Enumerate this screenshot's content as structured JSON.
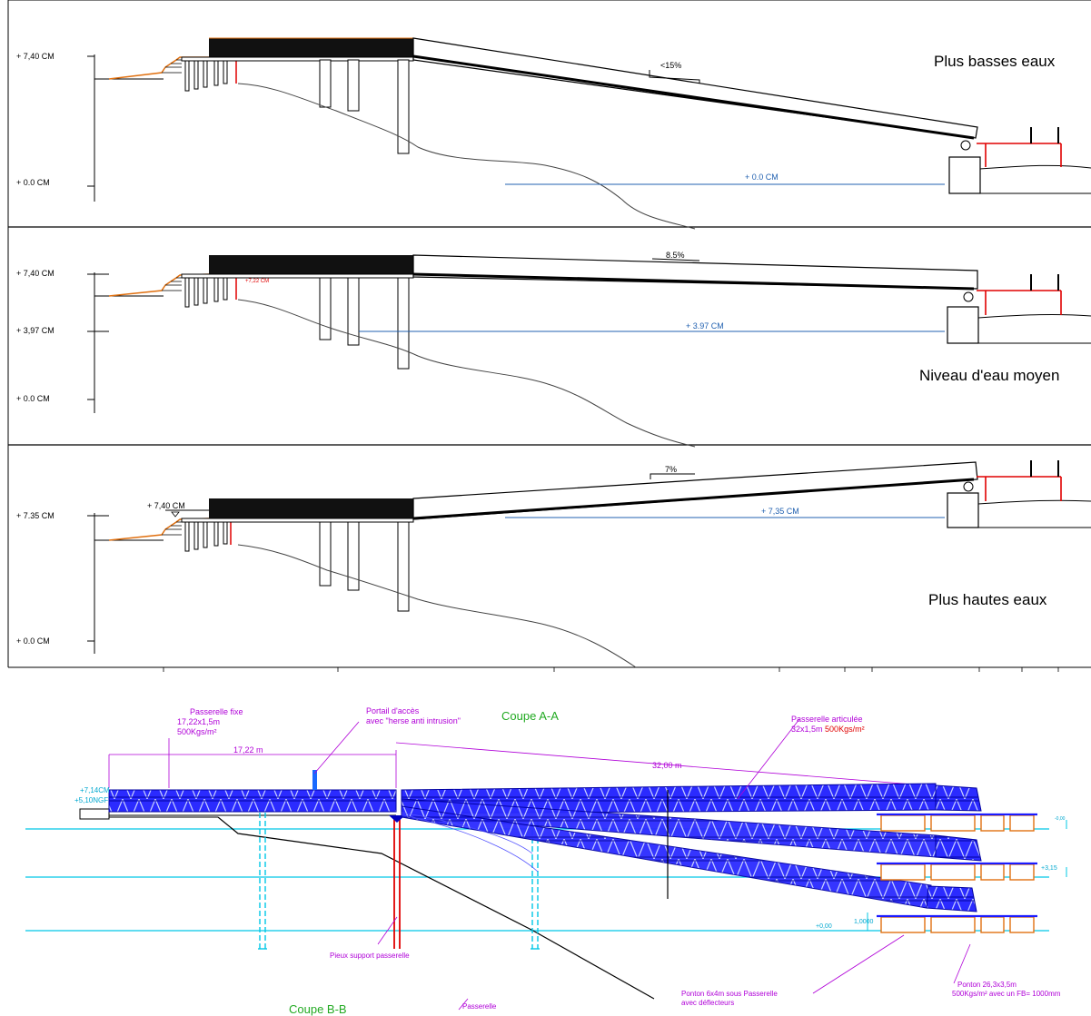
{
  "panels": [
    {
      "title": "Plus basses eaux",
      "slope": "<15%",
      "levels": [
        {
          "label": "+   7,40 CM"
        },
        {
          "label": "+   0.0 CM"
        }
      ],
      "water_label": "+     0.0 CM"
    },
    {
      "title": "Niveau d'eau moyen",
      "slope": "8.5%",
      "levels": [
        {
          "label": "+   7,40 CM"
        },
        {
          "label": "+   3,97 CM"
        },
        {
          "label": "+   0.0 CM"
        }
      ],
      "water_label": "+     3.97 CM",
      "red_note": "+7,22 CM"
    },
    {
      "title": "Plus hautes eaux",
      "slope": "7%",
      "levels": [
        {
          "label": "+   7.35 CM"
        },
        {
          "label": "+   0.0 CM"
        }
      ],
      "top_level": "+   7,40 CM",
      "water_label": "+     7,35 CM"
    }
  ],
  "section": {
    "title": "Coupe A-A",
    "subtitle": "Coupe B-B",
    "fixed_label": [
      "Passerelle fixe",
      "17,22x1,5m",
      "500Kgs/m²"
    ],
    "fixed_dim": "17,22 m",
    "portal_label": [
      "Portail d'accès",
      "avec \"herse anti intrusion\""
    ],
    "articulated_label": [
      "Passerelle articulée",
      "32x1,5m"
    ],
    "articulated_load": "500Kgs/m²",
    "articulated_dim": "32,00 m",
    "left_levels": [
      "+7,14CM",
      "+5,10NGF"
    ],
    "piles_label": "Pieux support passerelle",
    "ponton_small": [
      "Ponton 6x4m sous Passerelle",
      "avec déflecteurs"
    ],
    "ponton_big": [
      "Ponton 26,3x3,5m",
      "500Kgs/m² avec un FB= 1000mm"
    ],
    "bottom_cut": "Passerelle",
    "level_right_1": "+3,15",
    "level_right_2": "+0,00",
    "level_right_top": "-0,00",
    "level_scale": "1,0000"
  },
  "colors": {
    "deck": "#1a1aff",
    "water": "#00c8e6",
    "annotation": "#b000d8",
    "title_green": "#22aa22",
    "red": "#e00000",
    "orange": "#e07010",
    "wl_blue": "#2060b0"
  }
}
